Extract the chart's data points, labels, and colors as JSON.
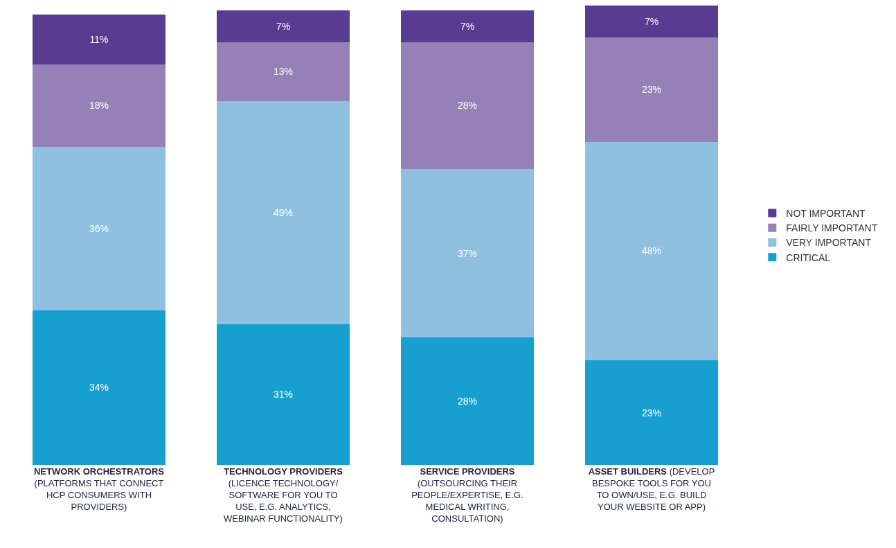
{
  "chart_data": {
    "type": "bar",
    "stacked": true,
    "legend": "right",
    "categories": [
      "NETWORK ORCHESTRATORS (PLATFORMS THAT CONNECT HCP CONSUMERS WITH PROVIDERS)",
      "TECHNOLOGY PROVIDERS (LICENCE TECHNOLOGY/ SOFTWARE FOR YOU TO USE, E.G. ANALYTICS, WEBINAR FUNCTIONALITY)",
      "SERVICE PROVIDERS (OUTSOURCING THEIR PEOPLE/EXPERTISE, E.G. MEDICAL WRITING, CONSULTATION)",
      "ASSET BUILDERS (DEVELOP BESPOKE TOOLS FOR YOU TO OWN/USE, E.G. BUILD YOUR WEBSITE OR APP)"
    ],
    "series": [
      {
        "name": "CRITICAL",
        "color": "#179fcf",
        "values": [
          34,
          31,
          28,
          23
        ],
        "value_labels": [
          "34%",
          "31%",
          "28%",
          "23%"
        ]
      },
      {
        "name": "VERY IMPORTANT",
        "color": "#8fc0e0",
        "values": [
          36,
          49,
          37,
          48
        ],
        "value_labels": [
          "36%",
          "49%",
          "37%",
          "48%"
        ]
      },
      {
        "name": "FAIRLY IMPORTANT",
        "color": "#9680b8",
        "values": [
          18,
          13,
          28,
          23
        ],
        "value_labels": [
          "18%",
          "13%",
          "28%",
          "23%"
        ]
      },
      {
        "name": "NOT IMPORTANT",
        "color": "#583c92",
        "values": [
          11,
          7,
          7,
          7
        ],
        "value_labels": [
          "11%",
          "7%",
          "7%",
          "7%"
        ]
      }
    ]
  }
}
